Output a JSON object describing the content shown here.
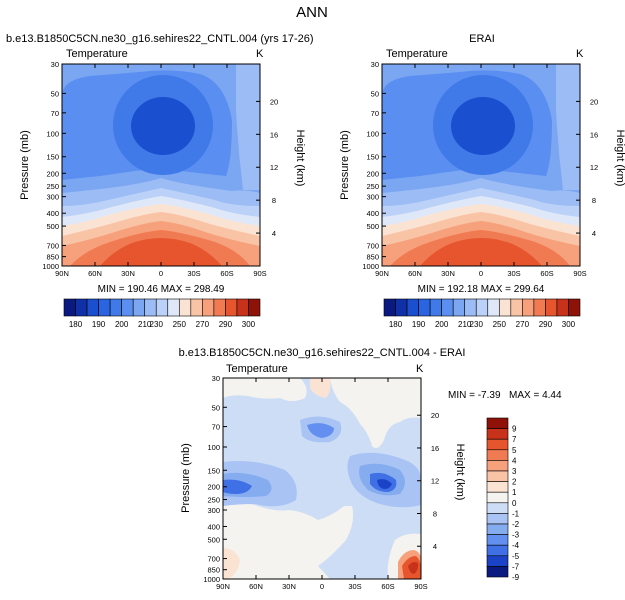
{
  "page_title": "ANN",
  "chart_data": [
    {
      "type": "heatmap",
      "title": "b.e13.B1850C5CN.ne30_g16.sehires22_CNTL.004 (yrs 17-26)",
      "subtitle_left": "Temperature",
      "subtitle_right": "K",
      "xlabel": "",
      "ylabel": "Pressure (mb)",
      "ylabel_right": "Height (km)",
      "x_tick_labels": [
        "90N",
        "60N",
        "30N",
        "0",
        "30S",
        "60S",
        "90S"
      ],
      "y_tick_labels": [
        "30",
        "50",
        "70",
        "100",
        "150",
        "200",
        "250",
        "300",
        "400",
        "500",
        "700",
        "850",
        "1000"
      ],
      "right_tick_labels": [
        "20",
        "16",
        "12",
        "8",
        "4"
      ],
      "stats": "MIN = 190.46   MAX = 298.49",
      "min": 190.46,
      "max": 298.49,
      "colorbar_labels": [
        "180",
        "190",
        "200",
        "210",
        "230",
        "250",
        "270",
        "290",
        "300"
      ],
      "colorbar_levels": [
        180,
        185,
        190,
        195,
        200,
        205,
        210,
        220,
        230,
        240,
        250,
        260,
        270,
        280,
        290,
        295,
        300
      ]
    },
    {
      "type": "heatmap",
      "title": "ERAI",
      "subtitle_left": "Temperature",
      "subtitle_right": "K",
      "xlabel": "",
      "ylabel": "Pressure (mb)",
      "ylabel_right": "Height (km)",
      "x_tick_labels": [
        "90N",
        "60N",
        "30N",
        "0",
        "30S",
        "60S",
        "90S"
      ],
      "y_tick_labels": [
        "30",
        "50",
        "70",
        "100",
        "150",
        "200",
        "250",
        "300",
        "400",
        "500",
        "700",
        "850",
        "1000"
      ],
      "right_tick_labels": [
        "20",
        "16",
        "12",
        "8",
        "4"
      ],
      "stats": "MIN = 192.18   MAX = 299.64",
      "min": 192.18,
      "max": 299.64,
      "colorbar_labels": [
        "180",
        "190",
        "200",
        "210",
        "230",
        "250",
        "270",
        "290",
        "300"
      ],
      "colorbar_levels": [
        180,
        185,
        190,
        195,
        200,
        205,
        210,
        220,
        230,
        240,
        250,
        260,
        270,
        280,
        290,
        295,
        300
      ]
    },
    {
      "type": "heatmap",
      "title": "b.e13.B1850C5CN.ne30_g16.sehires22_CNTL.004 - ERAI",
      "subtitle_left": "Temperature",
      "subtitle_right": "K",
      "xlabel": "",
      "ylabel": "Pressure (mb)",
      "ylabel_right": "Height (km)",
      "x_tick_labels": [
        "90N",
        "60N",
        "30N",
        "0",
        "30S",
        "60S",
        "90S"
      ],
      "y_tick_labels": [
        "30",
        "50",
        "70",
        "100",
        "150",
        "200",
        "250",
        "300",
        "400",
        "500",
        "700",
        "850",
        "1000"
      ],
      "right_tick_labels": [
        "20",
        "16",
        "12",
        "8",
        "4"
      ],
      "stats_min": "MIN = -7.39",
      "stats_max": "MAX =   4.44",
      "min": -7.39,
      "max": 4.44,
      "colorbar_labels": [
        "9",
        "7",
        "5",
        "4",
        "3",
        "2",
        "1",
        "0",
        "-1",
        "-2",
        "-3",
        "-4",
        "-5",
        "-7",
        "-9"
      ],
      "colorbar_levels": [
        -9,
        -7,
        -5,
        -4,
        -3,
        -2,
        -1,
        0,
        1,
        2,
        3,
        4,
        5,
        7,
        9
      ]
    }
  ],
  "colors": {
    "absolute_scale": [
      "#0a1a80",
      "#1030a8",
      "#1a4fd0",
      "#2a64e0",
      "#3f7ae8",
      "#5a8ef0",
      "#7aa6f2",
      "#9bbcf5",
      "#bcd1f7",
      "#dfe8f8",
      "#fbe3d3",
      "#f9c3a6",
      "#f6a07c",
      "#f07a52",
      "#e6552e",
      "#c8321a",
      "#8e1208"
    ],
    "diff_scale": [
      "#8e1208",
      "#c8321a",
      "#e6552e",
      "#f07a52",
      "#f6a07c",
      "#f9c3a6",
      "#fbe3d3",
      "#f5f3ef",
      "#cdddf6",
      "#a9c4f4",
      "#86acf0",
      "#628ff0",
      "#3f70e6",
      "#1a43c8",
      "#0a1a80"
    ]
  }
}
